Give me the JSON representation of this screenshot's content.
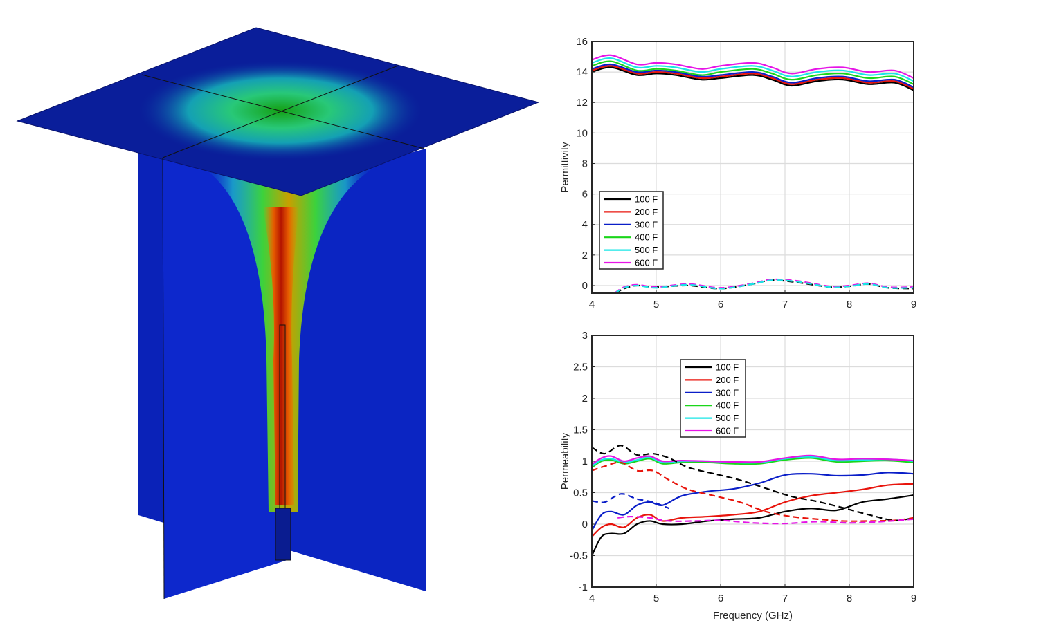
{
  "chart_data": [
    {
      "type": "line",
      "xlabel": "",
      "ylabel": "Permittivity",
      "xlim": [
        4,
        9
      ],
      "ylim": [
        -0.5,
        16
      ],
      "xticks": [
        4,
        5,
        6,
        7,
        8,
        9
      ],
      "yticks": [
        0,
        2,
        4,
        6,
        8,
        10,
        12,
        14,
        16
      ],
      "grid": true,
      "legend_position": "bottom-left",
      "legend": [
        "100 F",
        "200 F",
        "300 F",
        "400 F",
        "500 F",
        "600 F"
      ],
      "series": [
        {
          "name": "100 F",
          "color": "#000000",
          "style": "solid",
          "x": [
            4,
            4.3,
            4.7,
            5.0,
            5.3,
            5.7,
            6.0,
            6.5,
            6.8,
            7.1,
            7.5,
            7.9,
            8.3,
            8.7,
            9
          ],
          "y": [
            14.0,
            14.3,
            13.8,
            13.9,
            13.8,
            13.5,
            13.6,
            13.8,
            13.5,
            13.1,
            13.4,
            13.5,
            13.2,
            13.3,
            12.8
          ]
        },
        {
          "name": "200 F",
          "color": "#e8140c",
          "style": "solid",
          "x": [
            4,
            4.3,
            4.7,
            5.0,
            5.3,
            5.7,
            6.0,
            6.5,
            6.8,
            7.1,
            7.5,
            7.9,
            8.3,
            8.7,
            9
          ],
          "y": [
            14.1,
            14.4,
            13.9,
            14.0,
            13.9,
            13.6,
            13.7,
            13.9,
            13.6,
            13.2,
            13.5,
            13.6,
            13.3,
            13.4,
            12.9
          ]
        },
        {
          "name": "300 F",
          "color": "#0a1ec8",
          "style": "solid",
          "x": [
            4,
            4.3,
            4.7,
            5.0,
            5.3,
            5.7,
            6.0,
            6.5,
            6.8,
            7.1,
            7.5,
            7.9,
            8.3,
            8.7,
            9
          ],
          "y": [
            14.2,
            14.5,
            14.0,
            14.1,
            14.0,
            13.7,
            13.8,
            14.0,
            13.7,
            13.3,
            13.6,
            13.7,
            13.4,
            13.5,
            13.0
          ]
        },
        {
          "name": "400 F",
          "color": "#1ad61a",
          "style": "solid",
          "x": [
            4,
            4.3,
            4.7,
            5.0,
            5.3,
            5.7,
            6.0,
            6.5,
            6.8,
            7.1,
            7.5,
            7.9,
            8.3,
            8.7,
            9
          ],
          "y": [
            14.4,
            14.7,
            14.1,
            14.2,
            14.1,
            13.8,
            14.0,
            14.2,
            13.9,
            13.5,
            13.8,
            13.9,
            13.6,
            13.7,
            13.2
          ]
        },
        {
          "name": "500 F",
          "color": "#19e6e6",
          "style": "solid",
          "x": [
            4,
            4.3,
            4.7,
            5.0,
            5.3,
            5.7,
            6.0,
            6.5,
            6.8,
            7.1,
            7.5,
            7.9,
            8.3,
            8.7,
            9
          ],
          "y": [
            14.6,
            14.9,
            14.3,
            14.4,
            14.3,
            14.0,
            14.2,
            14.4,
            14.1,
            13.7,
            14.0,
            14.1,
            13.8,
            13.9,
            13.4
          ]
        },
        {
          "name": "600 F",
          "color": "#e614e6",
          "style": "solid",
          "x": [
            4,
            4.3,
            4.7,
            5.0,
            5.3,
            5.7,
            6.0,
            6.5,
            6.8,
            7.1,
            7.5,
            7.9,
            8.3,
            8.7,
            9
          ],
          "y": [
            14.8,
            15.1,
            14.5,
            14.6,
            14.5,
            14.2,
            14.4,
            14.6,
            14.3,
            13.9,
            14.2,
            14.3,
            14.0,
            14.1,
            13.6
          ]
        },
        {
          "name": "",
          "color": "#000000",
          "style": "dashed",
          "x": [
            4.37,
            4.5,
            4.7,
            5.0,
            5.5,
            6.0,
            6.5,
            6.8,
            7.2,
            7.7,
            8.0,
            8.3,
            8.6,
            9
          ],
          "y": [
            -0.5,
            -0.2,
            0.0,
            -0.1,
            0.0,
            -0.2,
            0.1,
            0.35,
            0.2,
            -0.1,
            -0.05,
            0.1,
            -0.15,
            -0.2
          ]
        },
        {
          "name": "",
          "color": "#e614e6",
          "style": "dashed",
          "x": [
            4.35,
            4.5,
            4.7,
            5.0,
            5.5,
            6.0,
            6.5,
            6.8,
            7.2,
            7.7,
            8.0,
            8.3,
            8.6,
            9
          ],
          "y": [
            -0.5,
            -0.1,
            0.05,
            -0.1,
            0.1,
            -0.15,
            0.15,
            0.4,
            0.3,
            -0.05,
            0.0,
            0.15,
            -0.1,
            -0.1
          ]
        },
        {
          "name": "",
          "color": "#19e6e6",
          "style": "dashed",
          "x": [
            4.36,
            4.5,
            4.7,
            5.0,
            5.5,
            6.0,
            6.5,
            6.8,
            7.2,
            7.7,
            8.0,
            8.3,
            8.6,
            9
          ],
          "y": [
            -0.5,
            -0.15,
            0.0,
            -0.15,
            0.05,
            -0.2,
            0.1,
            0.35,
            0.25,
            -0.1,
            -0.05,
            0.1,
            -0.15,
            -0.15
          ]
        }
      ]
    },
    {
      "type": "line",
      "xlabel": "Frequency (GHz)",
      "ylabel": "Permeability",
      "xlim": [
        4,
        9
      ],
      "ylim": [
        -1,
        3
      ],
      "xticks": [
        4,
        5,
        6,
        7,
        8,
        9
      ],
      "yticks": [
        -1,
        -0.5,
        0,
        0.5,
        1,
        1.5,
        2,
        2.5,
        3
      ],
      "grid": true,
      "legend_position": "top-left",
      "legend": [
        "100 F",
        "200 F",
        "300 F",
        "400 F",
        "500 F",
        "600 F"
      ],
      "series": [
        {
          "name": "100 F",
          "color": "#000000",
          "style": "solid",
          "x": [
            4,
            4.15,
            4.3,
            4.5,
            4.7,
            4.9,
            5.1,
            5.4,
            5.8,
            6.2,
            6.6,
            7.0,
            7.4,
            7.8,
            8.2,
            8.6,
            9
          ],
          "y": [
            -0.5,
            -0.2,
            -0.15,
            -0.15,
            0.0,
            0.05,
            0.0,
            0.0,
            0.05,
            0.08,
            0.1,
            0.2,
            0.25,
            0.22,
            0.35,
            0.4,
            0.46
          ]
        },
        {
          "name": "200 F",
          "color": "#e8140c",
          "style": "solid",
          "x": [
            4,
            4.15,
            4.3,
            4.5,
            4.7,
            4.9,
            5.1,
            5.4,
            5.8,
            6.2,
            6.6,
            7.0,
            7.4,
            7.8,
            8.2,
            8.6,
            9
          ],
          "y": [
            -0.2,
            -0.05,
            0.0,
            -0.05,
            0.1,
            0.15,
            0.05,
            0.1,
            0.12,
            0.15,
            0.2,
            0.35,
            0.45,
            0.5,
            0.55,
            0.62,
            0.64
          ]
        },
        {
          "name": "300 F",
          "color": "#0a1ec8",
          "style": "solid",
          "x": [
            4,
            4.15,
            4.3,
            4.5,
            4.7,
            4.9,
            5.1,
            5.4,
            5.8,
            6.2,
            6.6,
            7.0,
            7.4,
            7.8,
            8.2,
            8.6,
            9
          ],
          "y": [
            -0.1,
            0.15,
            0.2,
            0.15,
            0.3,
            0.35,
            0.3,
            0.45,
            0.52,
            0.56,
            0.65,
            0.78,
            0.8,
            0.77,
            0.78,
            0.82,
            0.8
          ]
        },
        {
          "name": "400 F",
          "color": "#1ad61a",
          "style": "solid",
          "x": [
            4,
            4.15,
            4.3,
            4.5,
            4.7,
            4.9,
            5.1,
            5.4,
            5.8,
            6.2,
            6.6,
            7.0,
            7.4,
            7.8,
            8.2,
            8.6,
            9
          ],
          "y": [
            0.9,
            1.0,
            1.02,
            0.96,
            1.0,
            1.04,
            0.96,
            0.98,
            0.98,
            0.96,
            0.96,
            1.02,
            1.05,
            0.99,
            1.0,
            1.01,
            0.98
          ]
        },
        {
          "name": "500 F",
          "color": "#19e6e6",
          "style": "solid",
          "x": [
            4,
            4.15,
            4.3,
            4.5,
            4.7,
            4.9,
            5.1,
            5.4,
            5.8,
            6.2,
            6.6,
            7.0,
            7.4,
            7.8,
            8.2,
            8.6,
            9
          ],
          "y": [
            0.92,
            1.02,
            1.04,
            0.98,
            1.02,
            1.06,
            0.98,
            1.0,
            1.0,
            0.98,
            0.98,
            1.04,
            1.07,
            1.01,
            1.02,
            1.03,
            1.0
          ]
        },
        {
          "name": "600 F",
          "color": "#e614e6",
          "style": "solid",
          "x": [
            4,
            4.15,
            4.3,
            4.5,
            4.7,
            4.9,
            5.1,
            5.4,
            5.8,
            6.2,
            6.6,
            7.0,
            7.4,
            7.8,
            8.2,
            8.6,
            9
          ],
          "y": [
            0.95,
            1.05,
            1.08,
            1.0,
            1.05,
            1.08,
            1.0,
            1.01,
            1.0,
            0.99,
            0.99,
            1.05,
            1.09,
            1.03,
            1.04,
            1.03,
            1.01
          ]
        },
        {
          "name": "",
          "color": "#000000",
          "style": "dashed",
          "x": [
            4,
            4.2,
            4.45,
            4.7,
            4.95,
            5.2,
            5.5,
            5.9,
            6.3,
            6.7,
            7.1,
            7.5,
            7.9,
            8.3,
            8.7,
            9
          ],
          "y": [
            1.22,
            1.12,
            1.25,
            1.1,
            1.12,
            1.05,
            0.9,
            0.8,
            0.7,
            0.57,
            0.44,
            0.36,
            0.26,
            0.15,
            0.06,
            0.1
          ]
        },
        {
          "name": "",
          "color": "#e8140c",
          "style": "dashed",
          "x": [
            4,
            4.2,
            4.45,
            4.7,
            4.95,
            5.2,
            5.5,
            5.9,
            6.3,
            6.7,
            7.1,
            7.5,
            7.9,
            8.3,
            8.7,
            9
          ],
          "y": [
            0.85,
            0.92,
            0.98,
            0.85,
            0.85,
            0.7,
            0.55,
            0.45,
            0.35,
            0.2,
            0.12,
            0.08,
            0.05,
            0.05,
            0.06,
            0.1
          ]
        },
        {
          "name": "",
          "color": "#0a1ec8",
          "style": "dashed",
          "x": [
            4,
            4.2,
            4.45,
            4.7,
            4.95,
            5.2
          ],
          "y": [
            0.37,
            0.35,
            0.48,
            0.4,
            0.35,
            0.25
          ]
        },
        {
          "name": "",
          "color": "#e614e6",
          "style": "dashed",
          "x": [
            4.4,
            4.6,
            4.9,
            5.2,
            5.6,
            6.0,
            6.5,
            7.0,
            7.5,
            8.0,
            8.5,
            9
          ],
          "y": [
            0.1,
            0.12,
            0.1,
            0.05,
            0.05,
            0.06,
            0.02,
            0.01,
            0.04,
            0.02,
            0.04,
            0.08
          ]
        }
      ]
    }
  ]
}
